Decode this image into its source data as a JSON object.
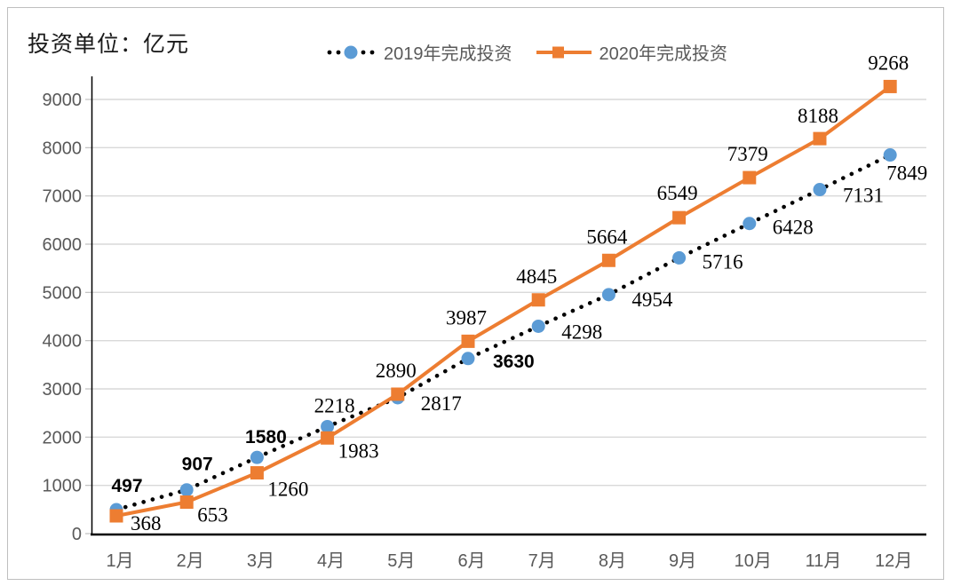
{
  "page": {
    "unit_label": "投资单位：亿元"
  },
  "chart_data": {
    "type": "line",
    "unit_label": "投资单位：亿元",
    "categories": [
      "1月",
      "2月",
      "3月",
      "4月",
      "5月",
      "6月",
      "7月",
      "8月",
      "9月",
      "10月",
      "11月",
      "12月"
    ],
    "series": [
      {
        "name": "2019年完成投资",
        "marker": "circle",
        "marker_color": "#5B9BD5",
        "line_style": "dotted",
        "line_color": "#000000",
        "values": [
          497,
          907,
          1580,
          2218,
          2817,
          3630,
          4298,
          4954,
          5716,
          6428,
          7131,
          7849
        ]
      },
      {
        "name": "2020年完成投资",
        "marker": "square",
        "marker_color": "#ED7D31",
        "line_style": "solid",
        "line_color": "#ED7D31",
        "values": [
          368,
          653,
          1260,
          1983,
          2890,
          3987,
          4845,
          5664,
          6549,
          7379,
          8188,
          9268
        ]
      }
    ],
    "ylim": [
      0,
      9000
    ],
    "ytick_step": 1000,
    "grid": "horizontal-gridlines",
    "legend_position": "top-center",
    "data_labels": true,
    "bold_sans_labels": [
      497,
      907,
      1580,
      3630
    ],
    "colors": {
      "gridline": "#D9D9D9",
      "tick_stub": "#BFBFBF",
      "axis": "#000000",
      "tick_label": "#595959",
      "legend_text": "#595959",
      "data_label": "#000000",
      "frame_border": "#BFBFBF",
      "background": "#FFFFFF"
    }
  }
}
